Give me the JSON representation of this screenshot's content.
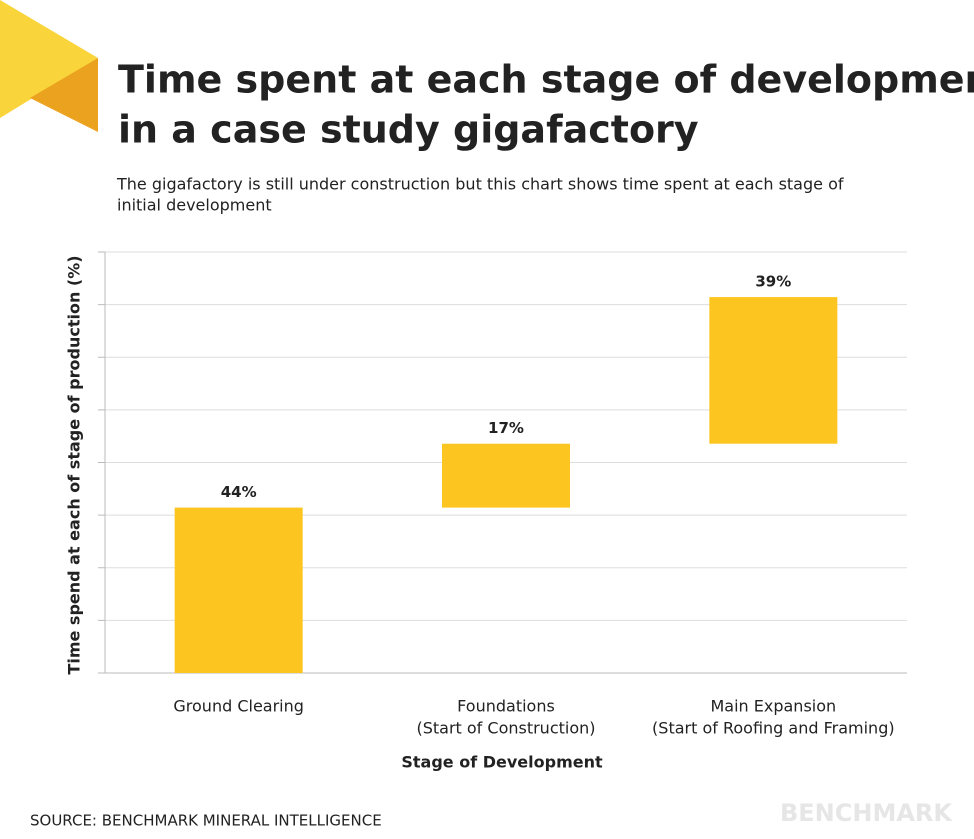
{
  "chart_data": {
    "type": "waterfall",
    "title": [
      "Time spent at each stage of development",
      "in a case study gigafactory"
    ],
    "subtitle": [
      "The gigafactory is still under construction but this chart shows time spent at each stage of",
      "initial development"
    ],
    "y_label": "Time spend at each of stage of production (%)",
    "x_label": "Stage of Development",
    "categories": [
      [
        "Ground Clearing"
      ],
      [
        "Foundations",
        "(Start of Construction)"
      ],
      [
        "Main Expansion",
        "(Start of Roofing and Framing)"
      ]
    ],
    "values": [
      44,
      17,
      39
    ],
    "value_labels": [
      "44%",
      "17%",
      "39%"
    ],
    "color": "#fdc520",
    "ylim": [
      0,
      112
    ],
    "yticks": [
      0,
      14,
      28,
      42,
      56,
      70,
      84,
      98,
      112
    ],
    "grid": true
  },
  "footer": {
    "source": "SOURCE: BENCHMARK MINERAL INTELLIGENCE",
    "brand": "BENCHMARK"
  }
}
